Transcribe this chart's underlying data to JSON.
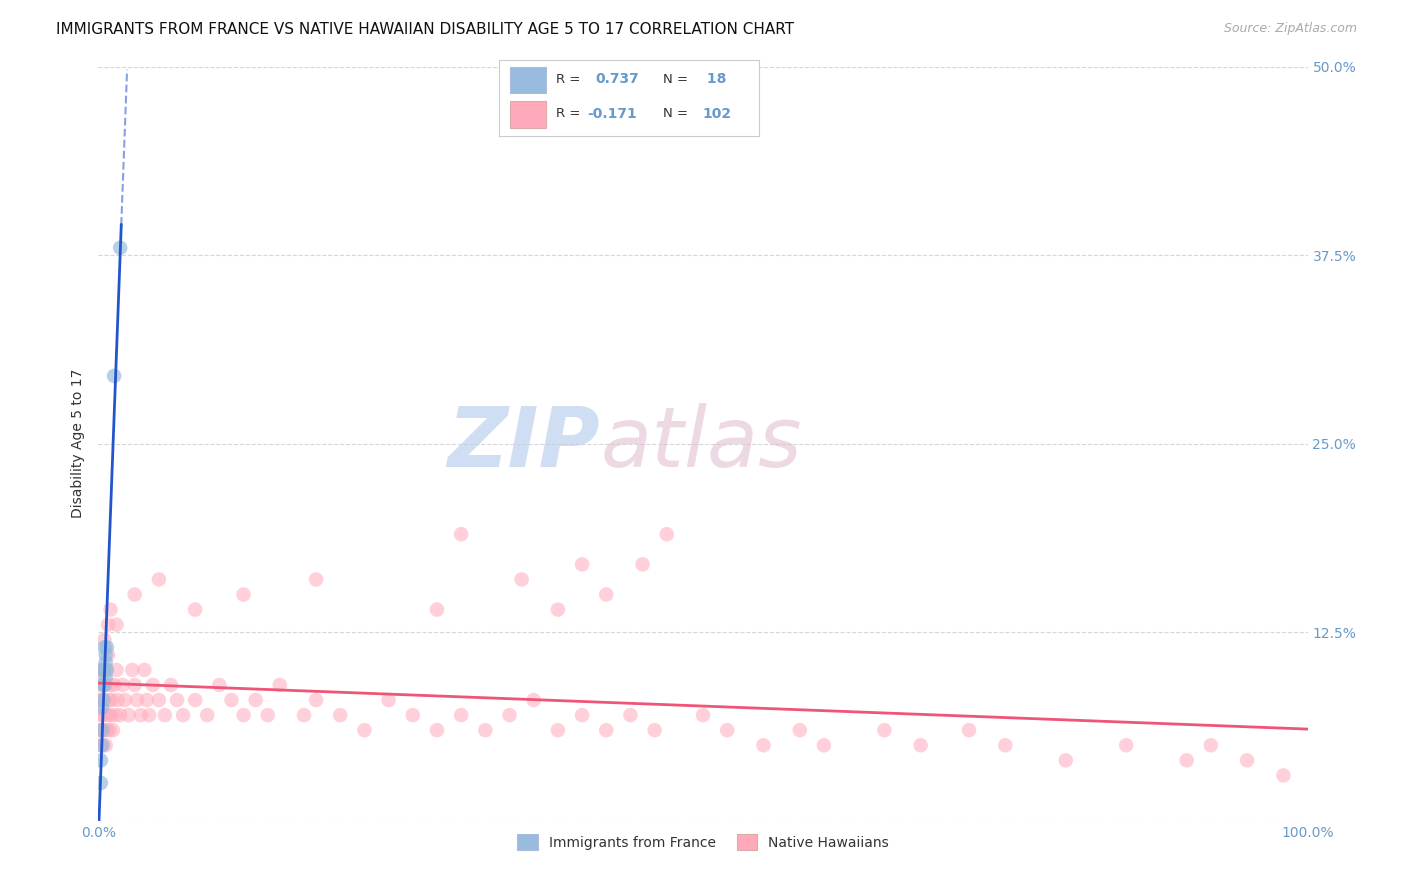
{
  "title": "IMMIGRANTS FROM FRANCE VS NATIVE HAWAIIAN DISABILITY AGE 5 TO 17 CORRELATION CHART",
  "source": "Source: ZipAtlas.com",
  "ylabel": "Disability Age 5 to 17",
  "xlim": [
    0.0,
    1.0
  ],
  "ylim": [
    0.0,
    0.5
  ],
  "blue_color": "#99BBDD",
  "pink_color": "#FFAABB",
  "blue_line_color": "#2255CC",
  "pink_line_color": "#EE5577",
  "axis_color": "#6699CC",
  "text_color": "#111111",
  "grid_color": "#CCCCCC",
  "background_color": "#FFFFFF",
  "title_fontsize": 11,
  "label_fontsize": 10,
  "tick_fontsize": 10,
  "blue_x": [
    0.002,
    0.002,
    0.003,
    0.003,
    0.003,
    0.004,
    0.004,
    0.004,
    0.005,
    0.005,
    0.005,
    0.006,
    0.006,
    0.006,
    0.007,
    0.007,
    0.013,
    0.018
  ],
  "blue_y": [
    0.025,
    0.04,
    0.05,
    0.06,
    0.075,
    0.08,
    0.09,
    0.1,
    0.09,
    0.1,
    0.115,
    0.095,
    0.105,
    0.11,
    0.1,
    0.115,
    0.295,
    0.38
  ],
  "pink_x": [
    0.001,
    0.001,
    0.001,
    0.002,
    0.002,
    0.002,
    0.003,
    0.003,
    0.003,
    0.004,
    0.004,
    0.005,
    0.005,
    0.005,
    0.006,
    0.006,
    0.007,
    0.007,
    0.008,
    0.008,
    0.009,
    0.009,
    0.01,
    0.01,
    0.011,
    0.012,
    0.013,
    0.014,
    0.015,
    0.016,
    0.018,
    0.02,
    0.022,
    0.025,
    0.028,
    0.03,
    0.032,
    0.035,
    0.038,
    0.04,
    0.042,
    0.045,
    0.05,
    0.055,
    0.06,
    0.065,
    0.07,
    0.08,
    0.09,
    0.1,
    0.11,
    0.12,
    0.13,
    0.14,
    0.15,
    0.17,
    0.18,
    0.2,
    0.22,
    0.24,
    0.26,
    0.28,
    0.3,
    0.32,
    0.34,
    0.36,
    0.38,
    0.4,
    0.42,
    0.44,
    0.46,
    0.5,
    0.52,
    0.55,
    0.58,
    0.6,
    0.65,
    0.68,
    0.72,
    0.75,
    0.8,
    0.85,
    0.9,
    0.92,
    0.95,
    0.98,
    0.3,
    0.35,
    0.4,
    0.45,
    0.42,
    0.47,
    0.38,
    0.28,
    0.18,
    0.12,
    0.08,
    0.05,
    0.03,
    0.015,
    0.01,
    0.008
  ],
  "pink_y": [
    0.06,
    0.08,
    0.1,
    0.05,
    0.07,
    0.09,
    0.06,
    0.08,
    0.1,
    0.05,
    0.07,
    0.06,
    0.08,
    0.12,
    0.05,
    0.09,
    0.06,
    0.1,
    0.07,
    0.11,
    0.06,
    0.08,
    0.07,
    0.09,
    0.08,
    0.06,
    0.09,
    0.07,
    0.1,
    0.08,
    0.07,
    0.09,
    0.08,
    0.07,
    0.1,
    0.09,
    0.08,
    0.07,
    0.1,
    0.08,
    0.07,
    0.09,
    0.08,
    0.07,
    0.09,
    0.08,
    0.07,
    0.08,
    0.07,
    0.09,
    0.08,
    0.07,
    0.08,
    0.07,
    0.09,
    0.07,
    0.08,
    0.07,
    0.06,
    0.08,
    0.07,
    0.06,
    0.07,
    0.06,
    0.07,
    0.08,
    0.06,
    0.07,
    0.06,
    0.07,
    0.06,
    0.07,
    0.06,
    0.05,
    0.06,
    0.05,
    0.06,
    0.05,
    0.06,
    0.05,
    0.04,
    0.05,
    0.04,
    0.05,
    0.04,
    0.03,
    0.19,
    0.16,
    0.17,
    0.17,
    0.15,
    0.19,
    0.14,
    0.14,
    0.16,
    0.15,
    0.14,
    0.16,
    0.15,
    0.13,
    0.14,
    0.13
  ]
}
